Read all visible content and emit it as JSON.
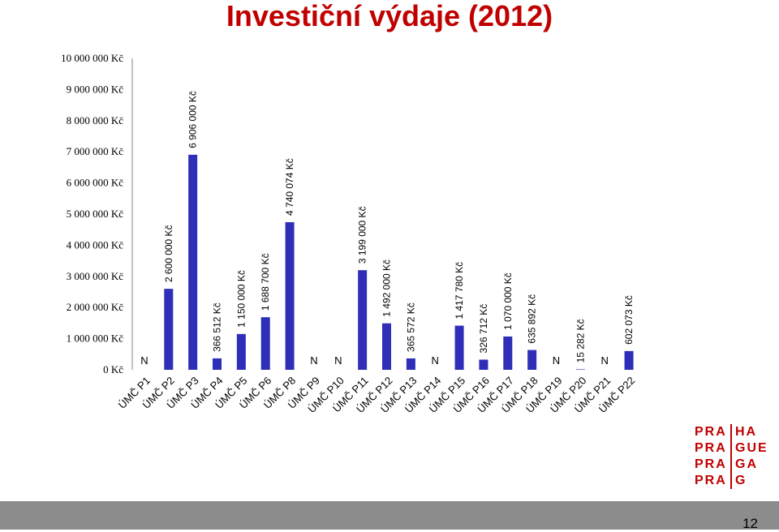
{
  "title": "Investiční výdaje (2012)",
  "colors": {
    "bar": "#2e2eb8",
    "title": "#c00000",
    "footer": "#8c8c8c"
  },
  "chart_data": {
    "type": "bar",
    "title": "Investiční výdaje (2012)",
    "ylim": [
      0,
      10000000
    ],
    "ytick_values": [
      0,
      1000000,
      2000000,
      3000000,
      4000000,
      5000000,
      6000000,
      7000000,
      8000000,
      9000000,
      10000000
    ],
    "ytick_labels": [
      "0 Kč",
      "1 000 000 Kč",
      "2 000 000 Kč",
      "3 000 000 Kč",
      "4 000 000 Kč",
      "5 000 000 Kč",
      "6 000 000 Kč",
      "7 000 000 Kč",
      "8 000 000 Kč",
      "9 000 000 Kč",
      "10 000 000 Kč"
    ],
    "categories": [
      "ÚMČ P1",
      "ÚMČ P2",
      "ÚMČ P3",
      "ÚMČ P4",
      "ÚMČ P5",
      "ÚMČ P6",
      "ÚMČ P8",
      "ÚMČ P9",
      "ÚMČ P10",
      "ÚMČ P11",
      "ÚMČ P12",
      "ÚMČ P13",
      "ÚMČ P14",
      "ÚMČ P15",
      "ÚMČ P16",
      "ÚMČ P17",
      "ÚMČ P18",
      "ÚMČ P19",
      "ÚMČ P20",
      "ÚMČ P21",
      "ÚMČ P22"
    ],
    "values": [
      null,
      2600000,
      6906000,
      366512,
      1150000,
      1688700,
      4740074,
      null,
      null,
      3199000,
      1492000,
      365572,
      null,
      1417780,
      326712,
      1070000,
      635892,
      null,
      15282,
      null,
      602073
    ],
    "labels": [
      "N",
      "2 600 000 Kč",
      "6 906 000 Kč",
      "366 512 Kč",
      "1 150 000 Kč",
      "1 688 700 Kč",
      "4 740 074 Kč",
      "N",
      "N",
      "3 199 000 Kč",
      "1 492 000 Kč",
      "365 572 Kč",
      "N",
      "1 417 780 Kč",
      "326 712 Kč",
      "1 070 000 Kč",
      "635 892 Kč",
      "N",
      "15 282 Kč",
      "N",
      "602 073 Kč"
    ]
  },
  "logo": {
    "rows": [
      [
        "PRA",
        "HA"
      ],
      [
        "PRA",
        "GUE"
      ],
      [
        "PRA",
        "GA"
      ],
      [
        "PRA",
        "G"
      ]
    ]
  },
  "page_number": "12"
}
